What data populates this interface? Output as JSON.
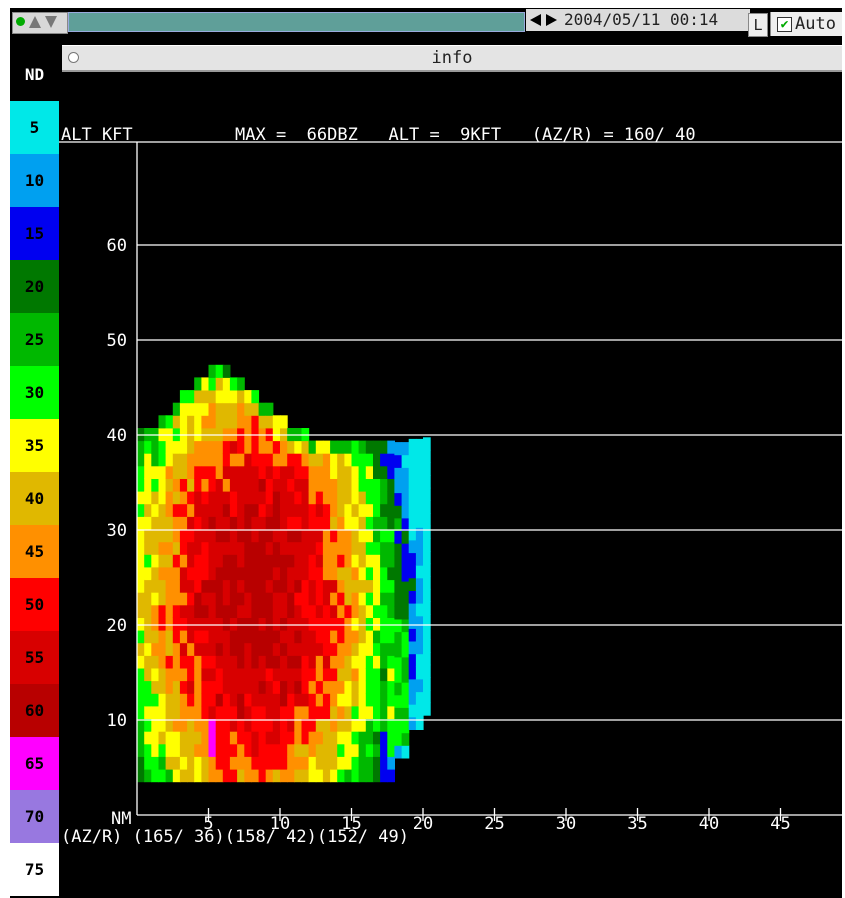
{
  "toolbar": {
    "timestamp": "2004/05/11  00:14",
    "l_button": "L",
    "auto_label": "Auto",
    "auto_checked": true
  },
  "info_bar": {
    "title": "info"
  },
  "legend": {
    "nd_label": "ND",
    "levels": [
      {
        "label": "5",
        "color": "#00e8e8"
      },
      {
        "label": "10",
        "color": "#00a0f0"
      },
      {
        "label": "15",
        "color": "#0000f0"
      },
      {
        "label": "20",
        "color": "#007800"
      },
      {
        "label": "25",
        "color": "#00b800"
      },
      {
        "label": "30",
        "color": "#00ff00"
      },
      {
        "label": "35",
        "color": "#ffff00"
      },
      {
        "label": "40",
        "color": "#e0b800"
      },
      {
        "label": "45",
        "color": "#ff9000"
      },
      {
        "label": "50",
        "color": "#ff0000"
      },
      {
        "label": "55",
        "color": "#d80000"
      },
      {
        "label": "60",
        "color": "#b80000"
      },
      {
        "label": "65",
        "color": "#ff00ff"
      },
      {
        "label": "70",
        "color": "#9878e0"
      },
      {
        "label": "75",
        "color": "#ffffff"
      }
    ]
  },
  "plot": {
    "header_left": "ALT KFT",
    "header_info": "MAX =  66DBZ   ALT =  9KFT   (AZ/R) = 160/ 40",
    "x_unit": "NM",
    "footer": "(AZ/R) (165/ 36)(158/ 42)(152/ 49)",
    "y_ticks": [
      "10",
      "20",
      "30",
      "40",
      "50",
      "60"
    ],
    "x_ticks": [
      "5",
      "10",
      "15",
      "20",
      "25",
      "30",
      "35",
      "40",
      "45"
    ]
  },
  "chart_data": {
    "type": "heatmap",
    "title": "MAX =  66DBZ   ALT =  9KFT   (AZ/R) = 160/ 40",
    "xlabel": "NM",
    "ylabel": "ALT KFT",
    "xlim": [
      0,
      48
    ],
    "ylim": [
      0,
      73
    ],
    "x_ticks": [
      5,
      10,
      15,
      20,
      25,
      30,
      35,
      40,
      45
    ],
    "y_ticks": [
      10,
      20,
      30,
      40,
      50,
      60
    ],
    "grid": "horizontal",
    "cell_size": {
      "x_nm": 0.5,
      "y_kft": 1.33
    },
    "level_scale_dbz": [
      5,
      10,
      15,
      20,
      25,
      30,
      35,
      40,
      45,
      50,
      55,
      60,
      65,
      70,
      75
    ],
    "column_tops_kft": {
      "x_start_nm": 0,
      "values": [
        40.5,
        40.5,
        40.5,
        41.8,
        41.8,
        43.1,
        44.5,
        44.5,
        45.8,
        45.8,
        47.1,
        47.1,
        47.1,
        45.8,
        45.8,
        44.5,
        44.5,
        43.1,
        43.1,
        41.8,
        41.8,
        40.5,
        40.5,
        40.5,
        39.2,
        39.2,
        39.2,
        39.2,
        39.2,
        39.2,
        39.2,
        39.2,
        39.2,
        39.2,
        39.2,
        39.2,
        39.2,
        39.2,
        39.2,
        39.2,
        39.2
      ]
    },
    "column_bottoms_kft": {
      "x_start_nm": 0,
      "values": [
        3.5,
        3.5,
        3.5,
        3.5,
        3.5,
        3.5,
        3.5,
        3.5,
        3.5,
        3.5,
        3.5,
        3.5,
        3.5,
        3.5,
        3.5,
        3.5,
        3.5,
        3.5,
        3.5,
        3.5,
        3.5,
        3.5,
        3.5,
        3.5,
        3.5,
        3.5,
        3.5,
        3.5,
        3.5,
        3.5,
        3.5,
        3.5,
        3.5,
        3.5,
        3.5,
        3.5,
        6.0,
        6.0,
        9.0,
        9.0,
        10.5
      ]
    },
    "core_center_nm": 8.0,
    "max_dbz": 66,
    "max_dbz_location": {
      "x_nm": 5.0,
      "alt_kft": 7.5
    },
    "ref_alt_kft": 9,
    "ref_az_r": "160/ 40",
    "az_r_labels": [
      {
        "x_nm": 5,
        "label": "(165/ 36)"
      },
      {
        "x_nm": 10,
        "label": "(158/ 42)"
      },
      {
        "x_nm": 15,
        "label": "(152/ 49)"
      }
    ]
  }
}
